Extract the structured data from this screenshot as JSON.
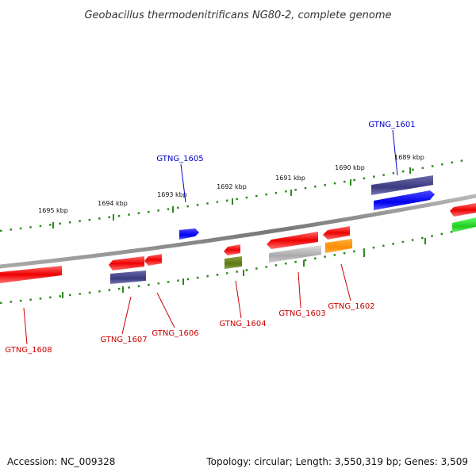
{
  "title": "Geobacillus thermodenitrificans NG80-2, complete genome",
  "footer": {
    "accession": "Accession: NC_009328",
    "summary": "Topology: circular; Length: 3,550,319 bp; Genes: 3,509"
  },
  "colors": {
    "backbone": "#8a8a8a",
    "ticks": "#2a8a1a",
    "forward_label": "#0000cc",
    "reverse_label": "#cc0000"
  },
  "tick_labels": [
    "1689 kbp",
    "1690 kbp",
    "1691 kbp",
    "1692 kbp",
    "1693 kbp",
    "1694 kbp",
    "1695 kbp"
  ],
  "genes": [
    {
      "id": "GTNG_1601",
      "strand": "forward",
      "label_color": "#0000cc"
    },
    {
      "id": "GTNG_1602",
      "strand": "reverse",
      "label_color": "#cc0000"
    },
    {
      "id": "GTNG_1603",
      "strand": "reverse",
      "label_color": "#cc0000"
    },
    {
      "id": "GTNG_1604",
      "strand": "reverse",
      "label_color": "#cc0000"
    },
    {
      "id": "GTNG_1605",
      "strand": "forward",
      "label_color": "#0000cc"
    },
    {
      "id": "GTNG_1606",
      "strand": "reverse",
      "label_color": "#cc0000"
    },
    {
      "id": "GTNG_1607",
      "strand": "reverse",
      "label_color": "#cc0000"
    },
    {
      "id": "GTNG_1608",
      "strand": "reverse",
      "label_color": "#cc0000"
    }
  ]
}
